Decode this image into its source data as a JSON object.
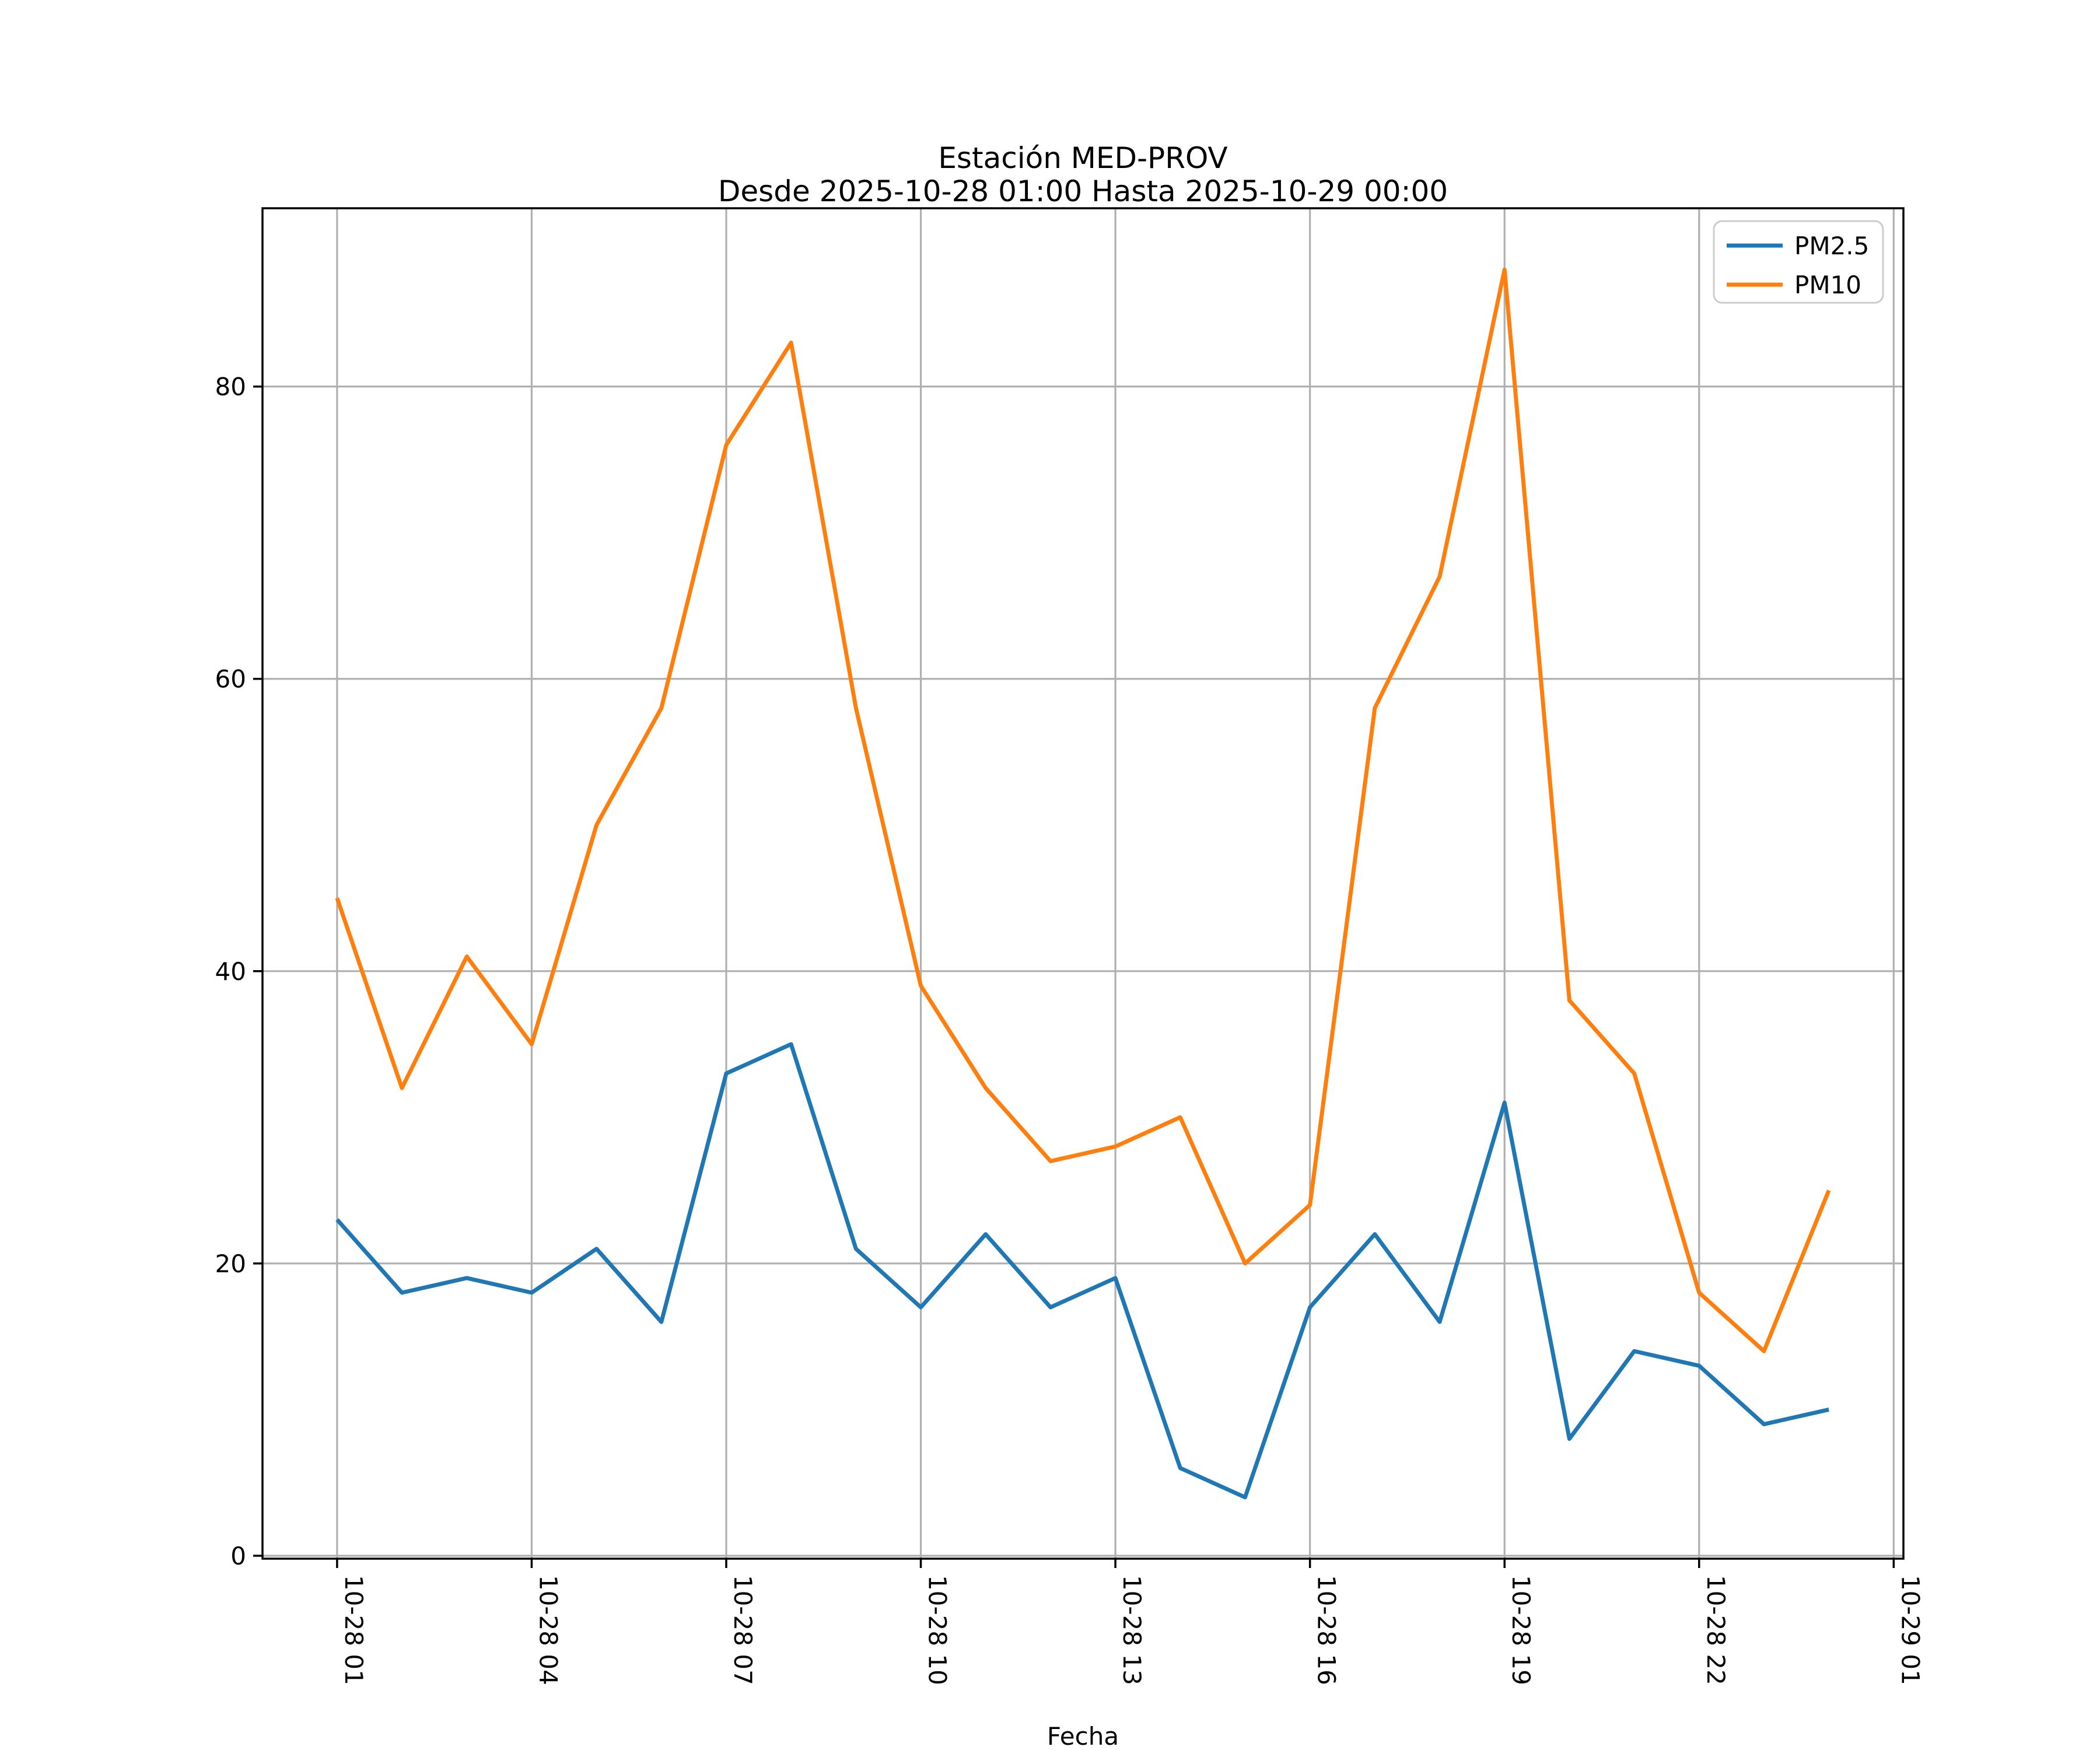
{
  "figure": {
    "title_line1": "Estación MED-PROV",
    "title_line2": "Desde 2025-10-28 01:00 Hasta 2025-10-29 00:00"
  },
  "chart_data": {
    "type": "line",
    "title": "Estación MED-PROV",
    "subtitle": "Desde 2025-10-28 01:00 Hasta 2025-10-29 00:00",
    "xlabel": "Fecha",
    "ylabel": "",
    "x_start": "2025-10-28 01:00",
    "x_end": "2025-10-29 00:00",
    "x_step": "1 hour",
    "series": [
      {
        "name": "PM2.5",
        "color": "#1f77b4",
        "values": [
          23,
          18,
          19,
          18,
          21,
          16,
          33,
          35,
          21,
          17,
          22,
          17,
          19,
          6,
          4,
          17,
          22,
          16,
          31,
          8,
          14,
          13,
          9,
          10
        ]
      },
      {
        "name": "PM10",
        "color": "#ff7f0e",
        "values": [
          45,
          32,
          41,
          35,
          50,
          58,
          76,
          83,
          58,
          39,
          32,
          27,
          28,
          30,
          20,
          24,
          58,
          67,
          88,
          38,
          33,
          18,
          14,
          25
        ]
      }
    ],
    "x_tick_positions": [
      0,
      3,
      6,
      9,
      12,
      15,
      18,
      21,
      24
    ],
    "x_tick_labels": [
      "10-28 01",
      "10-28 04",
      "10-28 07",
      "10-28 10",
      "10-28 13",
      "10-28 16",
      "10-28 19",
      "10-28 22",
      "10-29 01"
    ],
    "x_tick_rotation": 90,
    "y_ticks": [
      0,
      20,
      40,
      60,
      80
    ],
    "xlim": [
      -1.15,
      24.15
    ],
    "ylim": [
      -0.2,
      92.2
    ],
    "grid": true,
    "legend_position": "upper right",
    "legend_labels": [
      "PM2.5",
      "PM10"
    ],
    "grid_color": "#b0b0b0",
    "spine_color": "#000000",
    "background_color": "#ffffff"
  }
}
